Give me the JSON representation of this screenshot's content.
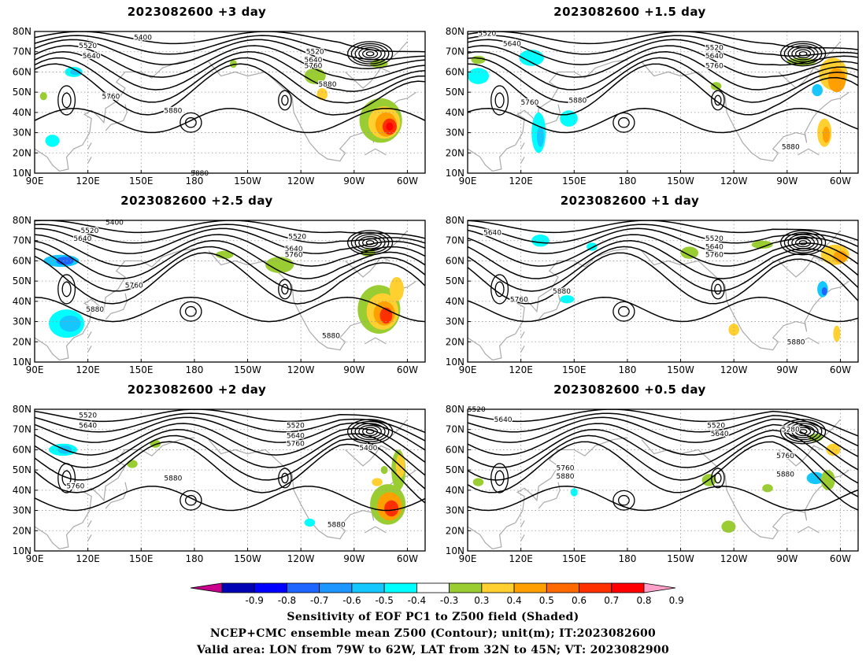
{
  "figure": {
    "footer_lines": [
      "Sensitivity of EOF PC1 to Z500 field (Shaded)",
      "NCEP+CMC ensemble mean Z500 (Contour); unit(m); IT:2023082600",
      "Valid area: LON from 79W to 62W, LAT from 32N to 45N; VT: 2023082900"
    ]
  },
  "axes": {
    "lon_ticks": [
      "90E",
      "120E",
      "150E",
      "180",
      "150W",
      "120W",
      "90W",
      "60W"
    ],
    "lat_ticks": [
      "10N",
      "20N",
      "30N",
      "40N",
      "50N",
      "60N",
      "70N",
      "80N"
    ]
  },
  "colorbar": {
    "labels": [
      "-0.9",
      "-0.8",
      "-0.7",
      "-0.6",
      "-0.5",
      "-0.4",
      "-0.3",
      "0.3",
      "0.4",
      "0.5",
      "0.6",
      "0.7",
      "0.8",
      "0.9"
    ],
    "colors": [
      "#c8008c",
      "#0000b4",
      "#0000ff",
      "#1e64ff",
      "#1e96ff",
      "#14c8ff",
      "#00ffff",
      "#ffffff",
      "#9acd32",
      "#ffd030",
      "#ffa000",
      "#ff6a00",
      "#ff3000",
      "#ff0000",
      "#ffa0c8"
    ]
  },
  "panels": [
    {
      "id": "p3",
      "title": "2023082600 +3 day",
      "lat_min": 10,
      "contour_labels": [
        {
          "text": "5400",
          "lon": 151,
          "lat": 77
        },
        {
          "text": "5520",
          "lon": 120,
          "lat": 73
        },
        {
          "text": "5640",
          "lon": 122,
          "lat": 68
        },
        {
          "text": "5520",
          "lon": 248,
          "lat": 70
        },
        {
          "text": "5640",
          "lon": 247,
          "lat": 66
        },
        {
          "text": "5760",
          "lon": 247,
          "lat": 63
        },
        {
          "text": "5880",
          "lon": 255,
          "lat": 54
        },
        {
          "text": "5760",
          "lon": 133,
          "lat": 48
        },
        {
          "text": "5880",
          "lon": 168,
          "lat": 41
        },
        {
          "text": "5880",
          "lon": 183,
          "lat": 10
        }
      ],
      "shading": [
        {
          "lon": 285,
          "lat": 36,
          "rx": 12,
          "ry": 11,
          "c": "#9acd32"
        },
        {
          "lon": 287,
          "lat": 35,
          "rx": 9,
          "ry": 8,
          "c": "#ffd030"
        },
        {
          "lon": 288,
          "lat": 34,
          "rx": 6,
          "ry": 6,
          "c": "#ffa000"
        },
        {
          "lon": 290,
          "lat": 33,
          "rx": 4,
          "ry": 4,
          "c": "#ff3000"
        },
        {
          "lon": 290,
          "lat": 33,
          "rx": 2,
          "ry": 2,
          "c": "#ff0000"
        },
        {
          "lon": 112,
          "lat": 60,
          "rx": 5,
          "ry": 2.5,
          "c": "#00ffff"
        },
        {
          "lon": 113,
          "lat": 60,
          "rx": 3,
          "ry": 1.5,
          "c": "#14c8ff"
        },
        {
          "lon": 202,
          "lat": 64,
          "rx": 2,
          "ry": 2,
          "c": "#9acd32"
        },
        {
          "lon": 248,
          "lat": 58,
          "rx": 6,
          "ry": 4,
          "c": "#9acd32"
        },
        {
          "lon": 252,
          "lat": 49,
          "rx": 3,
          "ry": 3,
          "c": "#ffd030"
        },
        {
          "lon": 100,
          "lat": 26,
          "rx": 4,
          "ry": 3,
          "c": "#00ffff"
        },
        {
          "lon": 284,
          "lat": 64,
          "rx": 5,
          "ry": 2,
          "c": "#9acd32"
        },
        {
          "lon": 95,
          "lat": 48,
          "rx": 2,
          "ry": 2,
          "c": "#9acd32"
        }
      ]
    },
    {
      "id": "p15",
      "title": "2023082600 +1.5 day",
      "lat_min": 10,
      "contour_labels": [
        {
          "text": "5520",
          "lon": 101,
          "lat": 79
        },
        {
          "text": "5640",
          "lon": 115,
          "lat": 74
        },
        {
          "text": "5520",
          "lon": 229,
          "lat": 72
        },
        {
          "text": "5640",
          "lon": 229,
          "lat": 68
        },
        {
          "text": "5760",
          "lon": 229,
          "lat": 63
        },
        {
          "text": "5760",
          "lon": 125,
          "lat": 45
        },
        {
          "text": "5880",
          "lon": 152,
          "lat": 46
        },
        {
          "text": "5880",
          "lon": 272,
          "lat": 23
        }
      ],
      "shading": [
        {
          "lon": 296,
          "lat": 59,
          "rx": 8,
          "ry": 8,
          "c": "#ffd030"
        },
        {
          "lon": 298,
          "lat": 56,
          "rx": 5,
          "ry": 6,
          "c": "#ffa000"
        },
        {
          "lon": 291,
          "lat": 30,
          "rx": 4,
          "ry": 7,
          "c": "#ffd030"
        },
        {
          "lon": 292,
          "lat": 29,
          "rx": 2,
          "ry": 4,
          "c": "#ffa000"
        },
        {
          "lon": 130,
          "lat": 30,
          "rx": 4,
          "ry": 10,
          "c": "#00ffff"
        },
        {
          "lon": 131,
          "lat": 28,
          "rx": 2,
          "ry": 5,
          "c": "#14c8ff"
        },
        {
          "lon": 147,
          "lat": 37,
          "rx": 5,
          "ry": 4,
          "c": "#00ffff"
        },
        {
          "lon": 126,
          "lat": 67,
          "rx": 7,
          "ry": 4,
          "c": "#00ffff"
        },
        {
          "lon": 278,
          "lat": 65,
          "rx": 8,
          "ry": 2,
          "c": "#9acd32"
        },
        {
          "lon": 287,
          "lat": 51,
          "rx": 3,
          "ry": 3,
          "c": "#14c8ff"
        },
        {
          "lon": 96,
          "lat": 58,
          "rx": 6,
          "ry": 4,
          "c": "#00ffff"
        },
        {
          "lon": 96,
          "lat": 66,
          "rx": 4,
          "ry": 2,
          "c": "#9acd32"
        },
        {
          "lon": 230,
          "lat": 53,
          "rx": 3,
          "ry": 2,
          "c": "#9acd32"
        }
      ]
    },
    {
      "id": "p25",
      "title": "2023082600 +2.5 day",
      "lat_min": 10,
      "contour_labels": [
        {
          "text": "5400",
          "lon": 135,
          "lat": 79
        },
        {
          "text": "5520",
          "lon": 121,
          "lat": 75
        },
        {
          "text": "5640",
          "lon": 117,
          "lat": 71
        },
        {
          "text": "5520",
          "lon": 238,
          "lat": 72
        },
        {
          "text": "5640",
          "lon": 236,
          "lat": 66
        },
        {
          "text": "5760",
          "lon": 236,
          "lat": 63
        },
        {
          "text": "5760",
          "lon": 146,
          "lat": 48
        },
        {
          "text": "5880",
          "lon": 124,
          "lat": 36
        },
        {
          "text": "5880",
          "lon": 257,
          "lat": 23
        }
      ],
      "shading": [
        {
          "lon": 284,
          "lat": 36,
          "rx": 12,
          "ry": 12,
          "c": "#9acd32"
        },
        {
          "lon": 286,
          "lat": 35,
          "rx": 9,
          "ry": 9,
          "c": "#ffd030"
        },
        {
          "lon": 287,
          "lat": 34,
          "rx": 6,
          "ry": 6,
          "c": "#ffa000"
        },
        {
          "lon": 288,
          "lat": 33,
          "rx": 3.5,
          "ry": 4,
          "c": "#ff3000"
        },
        {
          "lon": 105,
          "lat": 60,
          "rx": 10,
          "ry": 3,
          "c": "#14c8ff"
        },
        {
          "lon": 107,
          "lat": 60,
          "rx": 5,
          "ry": 2,
          "c": "#1e64ff"
        },
        {
          "lon": 108,
          "lat": 29,
          "rx": 10,
          "ry": 7,
          "c": "#00ffff"
        },
        {
          "lon": 110,
          "lat": 29,
          "rx": 6,
          "ry": 4,
          "c": "#14c8ff"
        },
        {
          "lon": 228,
          "lat": 58,
          "rx": 8,
          "ry": 4,
          "c": "#9acd32"
        },
        {
          "lon": 197,
          "lat": 63,
          "rx": 5,
          "ry": 2,
          "c": "#9acd32"
        },
        {
          "lon": 278,
          "lat": 64,
          "rx": 4,
          "ry": 2,
          "c": "#9acd32"
        },
        {
          "lon": 294,
          "lat": 46,
          "rx": 4,
          "ry": 6,
          "c": "#ffd030"
        }
      ]
    },
    {
      "id": "p1",
      "title": "2023082600 +1 day",
      "lat_min": 10,
      "contour_labels": [
        {
          "text": "5640",
          "lon": 104,
          "lat": 74
        },
        {
          "text": "5520",
          "lon": 229,
          "lat": 71
        },
        {
          "text": "5640",
          "lon": 229,
          "lat": 67
        },
        {
          "text": "5760",
          "lon": 229,
          "lat": 63
        },
        {
          "text": "5880",
          "lon": 143,
          "lat": 45
        },
        {
          "text": "5760",
          "lon": 119,
          "lat": 41
        },
        {
          "text": "5880",
          "lon": 275,
          "lat": 20
        }
      ],
      "shading": [
        {
          "lon": 297,
          "lat": 63,
          "rx": 8,
          "ry": 5,
          "c": "#ffd030"
        },
        {
          "lon": 300,
          "lat": 62,
          "rx": 4,
          "ry": 3,
          "c": "#ffa000"
        },
        {
          "lon": 290,
          "lat": 46,
          "rx": 3,
          "ry": 4,
          "c": "#14c8ff"
        },
        {
          "lon": 291,
          "lat": 45,
          "rx": 1.5,
          "ry": 2,
          "c": "#1e64ff"
        },
        {
          "lon": 240,
          "lat": 26,
          "rx": 3,
          "ry": 3,
          "c": "#ffd030"
        },
        {
          "lon": 131,
          "lat": 70,
          "rx": 5,
          "ry": 3,
          "c": "#00ffff"
        },
        {
          "lon": 146,
          "lat": 41,
          "rx": 4,
          "ry": 2,
          "c": "#00ffff"
        },
        {
          "lon": 256,
          "lat": 68,
          "rx": 6,
          "ry": 2,
          "c": "#9acd32"
        },
        {
          "lon": 215,
          "lat": 64,
          "rx": 5,
          "ry": 3,
          "c": "#9acd32"
        },
        {
          "lon": 160,
          "lat": 67,
          "rx": 3,
          "ry": 2,
          "c": "#00ffff"
        },
        {
          "lon": 298,
          "lat": 24,
          "rx": 2,
          "ry": 4,
          "c": "#ffd030"
        }
      ]
    },
    {
      "id": "p2",
      "title": "2023082600 +2 day",
      "lat_min": 10,
      "contour_labels": [
        {
          "text": "5520",
          "lon": 120,
          "lat": 77
        },
        {
          "text": "5640",
          "lon": 120,
          "lat": 72
        },
        {
          "text": "5520",
          "lon": 237,
          "lat": 72
        },
        {
          "text": "5640",
          "lon": 237,
          "lat": 67
        },
        {
          "text": "5760",
          "lon": 237,
          "lat": 63
        },
        {
          "text": "5400",
          "lon": 278,
          "lat": 61
        },
        {
          "text": "5880",
          "lon": 168,
          "lat": 46
        },
        {
          "text": "5760",
          "lon": 113,
          "lat": 42
        },
        {
          "text": "5880",
          "lon": 260,
          "lat": 23
        }
      ],
      "shading": [
        {
          "lon": 289,
          "lat": 33,
          "rx": 10,
          "ry": 10,
          "c": "#9acd32"
        },
        {
          "lon": 290,
          "lat": 32,
          "rx": 7,
          "ry": 7,
          "c": "#ffa000"
        },
        {
          "lon": 291,
          "lat": 31,
          "rx": 4,
          "ry": 4,
          "c": "#ff3000"
        },
        {
          "lon": 295,
          "lat": 50,
          "rx": 4,
          "ry": 10,
          "c": "#9acd32"
        },
        {
          "lon": 296,
          "lat": 52,
          "rx": 2.5,
          "ry": 6,
          "c": "#ffd030"
        },
        {
          "lon": 106,
          "lat": 60,
          "rx": 8,
          "ry": 3,
          "c": "#00ffff"
        },
        {
          "lon": 107,
          "lat": 60,
          "rx": 4,
          "ry": 2,
          "c": "#14c8ff"
        },
        {
          "lon": 158,
          "lat": 63,
          "rx": 3,
          "ry": 2,
          "c": "#9acd32"
        },
        {
          "lon": 283,
          "lat": 44,
          "rx": 3,
          "ry": 2,
          "c": "#ffd030"
        },
        {
          "lon": 245,
          "lat": 24,
          "rx": 3,
          "ry": 2,
          "c": "#00ffff"
        },
        {
          "lon": 145,
          "lat": 53,
          "rx": 3,
          "ry": 2,
          "c": "#9acd32"
        },
        {
          "lon": 287,
          "lat": 50,
          "rx": 2,
          "ry": 2,
          "c": "#9acd32"
        }
      ]
    },
    {
      "id": "p05",
      "title": "2023082600 +0.5 day",
      "lat_min": 10,
      "contour_labels": [
        {
          "text": "5520",
          "lon": 95,
          "lat": 80
        },
        {
          "text": "5640",
          "lon": 110,
          "lat": 75
        },
        {
          "text": "5520",
          "lon": 230,
          "lat": 72
        },
        {
          "text": "5640",
          "lon": 232,
          "lat": 68
        },
        {
          "text": "5280",
          "lon": 272,
          "lat": 70
        },
        {
          "text": "5760",
          "lon": 269,
          "lat": 57
        },
        {
          "text": "5760",
          "lon": 145,
          "lat": 51
        },
        {
          "text": "5880",
          "lon": 145,
          "lat": 47
        },
        {
          "text": "5880",
          "lon": 269,
          "lat": 48
        }
      ],
      "shading": [
        {
          "lon": 286,
          "lat": 46,
          "rx": 5,
          "ry": 3,
          "c": "#14c8ff"
        },
        {
          "lon": 226,
          "lat": 45,
          "rx": 4,
          "ry": 3,
          "c": "#9acd32"
        },
        {
          "lon": 296,
          "lat": 60,
          "rx": 4,
          "ry": 3,
          "c": "#ffd030"
        },
        {
          "lon": 293,
          "lat": 45,
          "rx": 4,
          "ry": 5,
          "c": "#9acd32"
        },
        {
          "lon": 237,
          "lat": 22,
          "rx": 4,
          "ry": 3,
          "c": "#9acd32"
        },
        {
          "lon": 259,
          "lat": 41,
          "rx": 3,
          "ry": 2,
          "c": "#9acd32"
        },
        {
          "lon": 96,
          "lat": 44,
          "rx": 3,
          "ry": 2,
          "c": "#9acd32"
        },
        {
          "lon": 286,
          "lat": 66,
          "rx": 4,
          "ry": 2,
          "c": "#9acd32"
        },
        {
          "lon": 150,
          "lat": 39,
          "rx": 2,
          "ry": 2,
          "c": "#00ffff"
        }
      ]
    }
  ]
}
